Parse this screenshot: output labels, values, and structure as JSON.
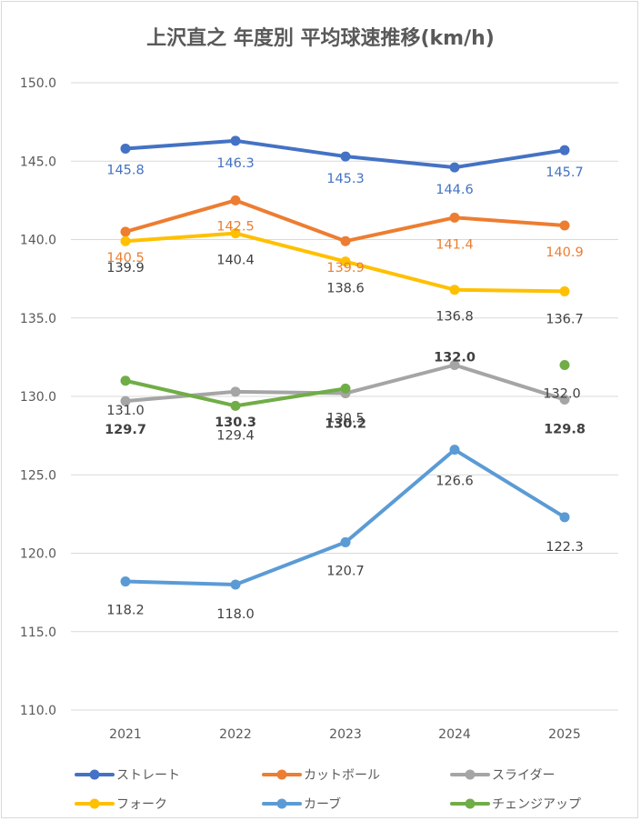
{
  "chart_data": {
    "type": "line",
    "title": "上沢直之 年度別 平均球速推移(km/h)",
    "categories": [
      "2021",
      "2022",
      "2023",
      "2024",
      "2025"
    ],
    "ylim": [
      110.0,
      150.0
    ],
    "yticks": [
      "110.0",
      "115.0",
      "120.0",
      "125.0",
      "130.0",
      "135.0",
      "140.0",
      "145.0",
      "150.0"
    ],
    "grid": true,
    "legend_position": "bottom",
    "series": [
      {
        "name": "ストレート",
        "color": "#4472C4",
        "values": [
          145.8,
          146.3,
          145.3,
          144.6,
          145.7
        ],
        "labels": [
          "145.8",
          "146.3",
          "145.3",
          "144.6",
          "145.7"
        ],
        "label_color": "#4472C4",
        "label_bold": false
      },
      {
        "name": "カットボール",
        "color": "#ED7D31",
        "values": [
          140.5,
          142.5,
          139.9,
          141.4,
          140.9
        ],
        "labels": [
          "140.5",
          "142.5",
          "139.9",
          "141.4",
          "140.9"
        ],
        "label_color": "#ED7D31",
        "label_bold": false
      },
      {
        "name": "スライダー",
        "color": "#A5A5A5",
        "values": [
          129.7,
          130.3,
          130.2,
          132.0,
          129.8
        ],
        "labels": [
          "129.7",
          "130.3",
          "130.2",
          "132.0",
          "129.8"
        ],
        "label_color": "#404040",
        "label_bold": true
      },
      {
        "name": "フォーク",
        "color": "#FFC000",
        "values": [
          139.9,
          140.4,
          138.6,
          136.8,
          136.7
        ],
        "labels": [
          "139.9",
          "140.4",
          "138.6",
          "136.8",
          "136.7"
        ],
        "label_color": "#404040",
        "label_bold": false
      },
      {
        "name": "カーブ",
        "color": "#5B9BD5",
        "values": [
          118.2,
          118.0,
          120.7,
          126.6,
          122.3
        ],
        "labels": [
          "118.2",
          "118.0",
          "120.7",
          "126.6",
          "122.3"
        ],
        "label_color": "#404040",
        "label_bold": false
      },
      {
        "name": "チェンジアップ",
        "color": "#70AD47",
        "values": [
          131.0,
          129.4,
          130.5,
          null,
          132.0
        ],
        "labels": [
          "131.0",
          "129.4",
          "130.5",
          "",
          "132.0"
        ],
        "label_color": "#404040",
        "label_bold": false
      }
    ]
  }
}
